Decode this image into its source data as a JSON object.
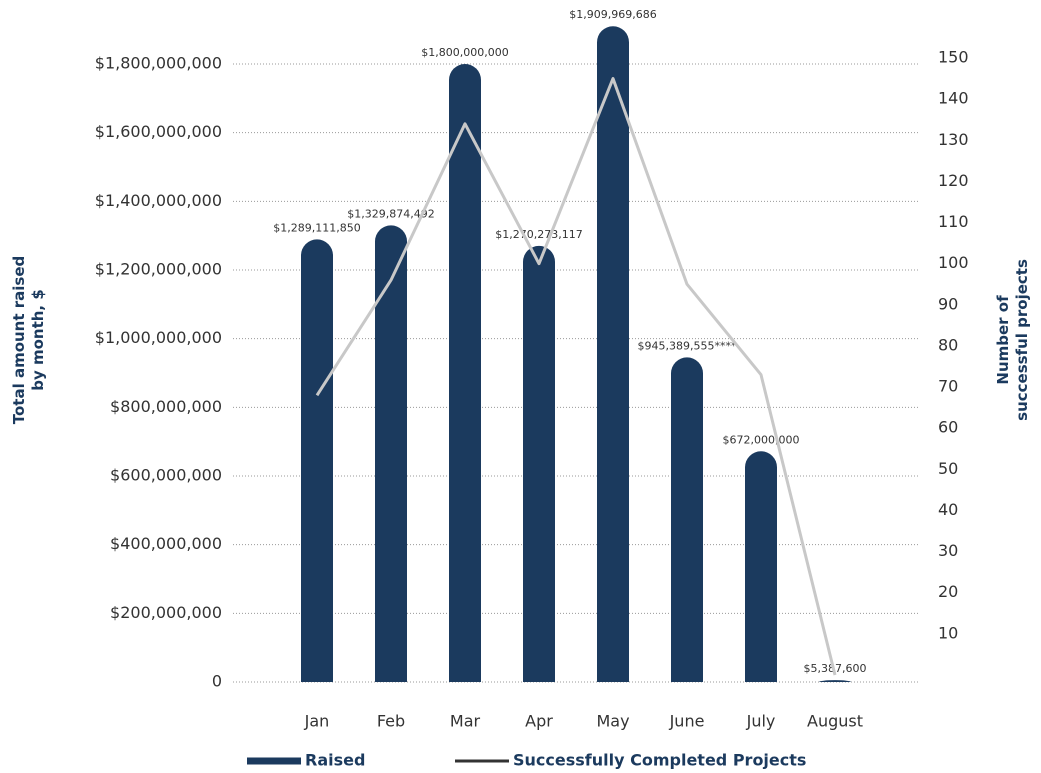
{
  "chart_data": {
    "type": "bar-line",
    "y_label": "Total amount raised by month, $",
    "y2_label": "Number of successful projects",
    "categories": [
      "Jan",
      "Feb",
      "Mar",
      "Apr",
      "May",
      "June",
      "July",
      "August"
    ],
    "series": [
      {
        "name": "Raised",
        "type": "bar",
        "color": "#1b3a5e",
        "values": [
          1289111850,
          1329874492,
          1800000000,
          1270273117,
          1909969686,
          945389555,
          672000000,
          5387600
        ],
        "value_labels": [
          "$1,289,111,850",
          "$1,329,874,492",
          "$1,800,000,000",
          "$1,270,273,117",
          "$1,909,969,686",
          "$945,389,555****",
          "$672,000,000",
          "$5,387,600"
        ]
      },
      {
        "name": "Successfully Completed Projects",
        "type": "line",
        "axis": "y2",
        "color": "#c8c8c8",
        "values": [
          68,
          96,
          134,
          100,
          145,
          95,
          73,
          0
        ]
      }
    ],
    "ylim": [
      0,
      1800000000
    ],
    "yticks": [
      0,
      {
        "value": 200000000,
        "label": "$200,000,000"
      },
      {
        "value": 400000000,
        "label": "$400,000,000"
      },
      {
        "value": 600000000,
        "label": "$600,000,000"
      },
      {
        "value": 800000000,
        "label": "$800,000,000"
      },
      {
        "value": 1000000000,
        "label": "$1,000,000,000"
      },
      {
        "value": 1200000000,
        "label": "$1,200,000,000"
      },
      {
        "value": 1400000000,
        "label": "$1,400,000,000"
      },
      {
        "value": 1600000000,
        "label": "$1,600,000,000"
      },
      {
        "value": 1800000000,
        "label": "$1,800,000,000"
      }
    ],
    "y2lim": [
      0,
      150
    ],
    "y2ticks": [
      10,
      20,
      30,
      40,
      50,
      60,
      70,
      80,
      90,
      100,
      110,
      120,
      130,
      140,
      150
    ],
    "grid": true
  }
}
